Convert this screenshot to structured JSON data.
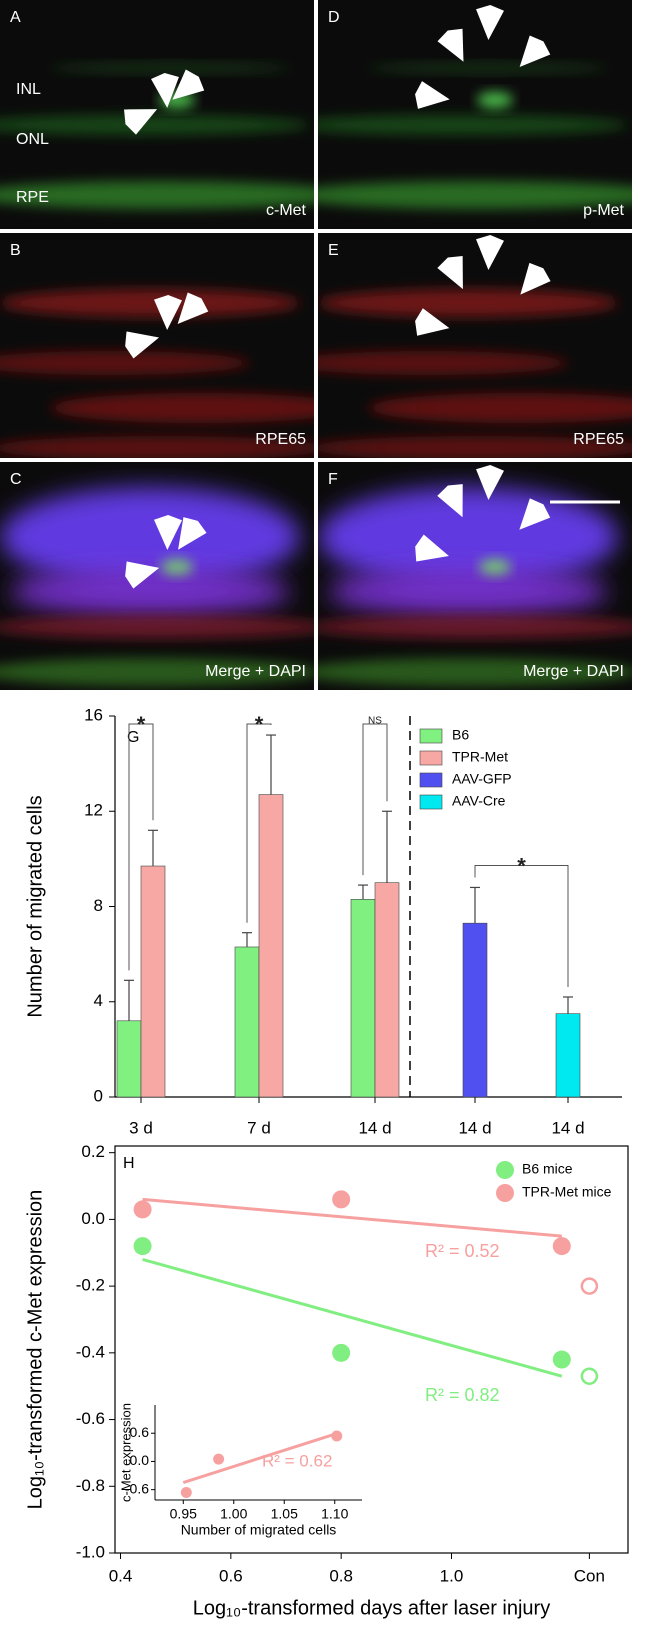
{
  "panels": [
    {
      "letter": "A",
      "labels": [
        "INL",
        "ONL",
        "RPE"
      ],
      "stain": "c-Met"
    },
    {
      "letter": "B",
      "stain": "RPE65"
    },
    {
      "letter": "C",
      "stain": "Merge + DAPI"
    },
    {
      "letter": "D",
      "stain": "p-Met"
    },
    {
      "letter": "E",
      "stain": "RPE65"
    },
    {
      "letter": "F",
      "stain": "Merge + DAPI"
    }
  ],
  "chart_data": [
    {
      "type": "bar",
      "panel": "G",
      "ylabel": "Number of migrated cells",
      "categories": [
        "3 d",
        "7 d",
        "14 d",
        "14 d",
        "14 d"
      ],
      "series": [
        {
          "name": "B6",
          "color": "#80f080",
          "values": [
            3.2,
            6.3,
            8.3,
            null,
            null
          ],
          "errors": [
            1.7,
            0.6,
            0.6,
            null,
            null
          ]
        },
        {
          "name": "TPR-Met",
          "color": "#f7a8a4",
          "values": [
            9.7,
            12.7,
            9.0,
            null,
            null
          ],
          "errors": [
            1.5,
            2.5,
            3.0,
            null,
            null
          ]
        },
        {
          "name": "AAV-GFP",
          "color": "#5050f0",
          "values": [
            null,
            null,
            null,
            7.3,
            null
          ],
          "errors": [
            null,
            null,
            null,
            1.5,
            null
          ]
        },
        {
          "name": "AAV-Cre",
          "color": "#00e8f0",
          "values": [
            null,
            null,
            null,
            null,
            3.5
          ],
          "errors": [
            null,
            null,
            null,
            null,
            0.7
          ]
        }
      ],
      "significance": [
        "*",
        "*",
        "NS",
        "*"
      ],
      "ylim": [
        0,
        16
      ],
      "yticks": [
        0,
        4,
        8,
        12,
        16
      ]
    },
    {
      "type": "scatter",
      "panel": "H",
      "ylabel": "Log₁₀-transformed c-Met expression",
      "xlabel": "Log₁₀-transformed days after laser injury",
      "series": [
        {
          "name": "B6 mice",
          "color": "#80ee80",
          "x": [
            0.44,
            0.8,
            1.2,
            1.25
          ],
          "values": [
            -0.08,
            -0.4,
            -0.42,
            -0.47
          ],
          "open": [
            false,
            false,
            false,
            true
          ],
          "fit_x": [
            0.44,
            1.2
          ],
          "fit_y": [
            -0.12,
            -0.47
          ],
          "r2_label": "R² = 0.82"
        },
        {
          "name": "TPR-Met mice",
          "color": "#f7a0a0",
          "x": [
            0.44,
            0.8,
            1.2,
            1.25
          ],
          "values": [
            0.03,
            0.06,
            -0.08,
            -0.2
          ],
          "open": [
            false,
            false,
            false,
            true
          ],
          "fit_x": [
            0.44,
            1.2
          ],
          "fit_y": [
            0.06,
            -0.05
          ],
          "r2_label": "R² = 0.52"
        }
      ],
      "xlim": [
        0.39,
        1.32
      ],
      "xticks": [
        0.4,
        0.6,
        0.8,
        {
          "value": 1,
          "label": "1.0"
        },
        {
          "value": 1.25,
          "label": "Con"
        }
      ],
      "ylim": [
        -1.0,
        0.22
      ],
      "yticks": [
        0.2,
        {
          "value": 0,
          "label": "0.0"
        },
        -0.2,
        -0.4,
        -0.6,
        -0.8,
        {
          "value": -1,
          "label": "-1.0"
        }
      ],
      "inset": {
        "ylabel": "c-Met expression",
        "xlabel": "Number of migrated cells",
        "x": [
          0.953,
          0.985,
          1.102
        ],
        "values": [
          -0.66,
          0.05,
          0.54
        ],
        "color": "#f7a0a0",
        "fit_x": [
          0.95,
          1.1
        ],
        "fit_y": [
          -0.45,
          0.58
        ],
        "r2_label": "R² = 0.62",
        "xlim": [
          0.922,
          1.127
        ],
        "xticks": [
          0.95,
          {
            "value": 1,
            "label": "1.00"
          },
          1.05,
          {
            "value": 1.1,
            "label": "1.10"
          }
        ],
        "ylim": [
          -0.82,
          1.2
        ],
        "yticks": [
          0.6,
          {
            "value": 0,
            "label": "0.0"
          },
          -0.6
        ]
      }
    }
  ]
}
